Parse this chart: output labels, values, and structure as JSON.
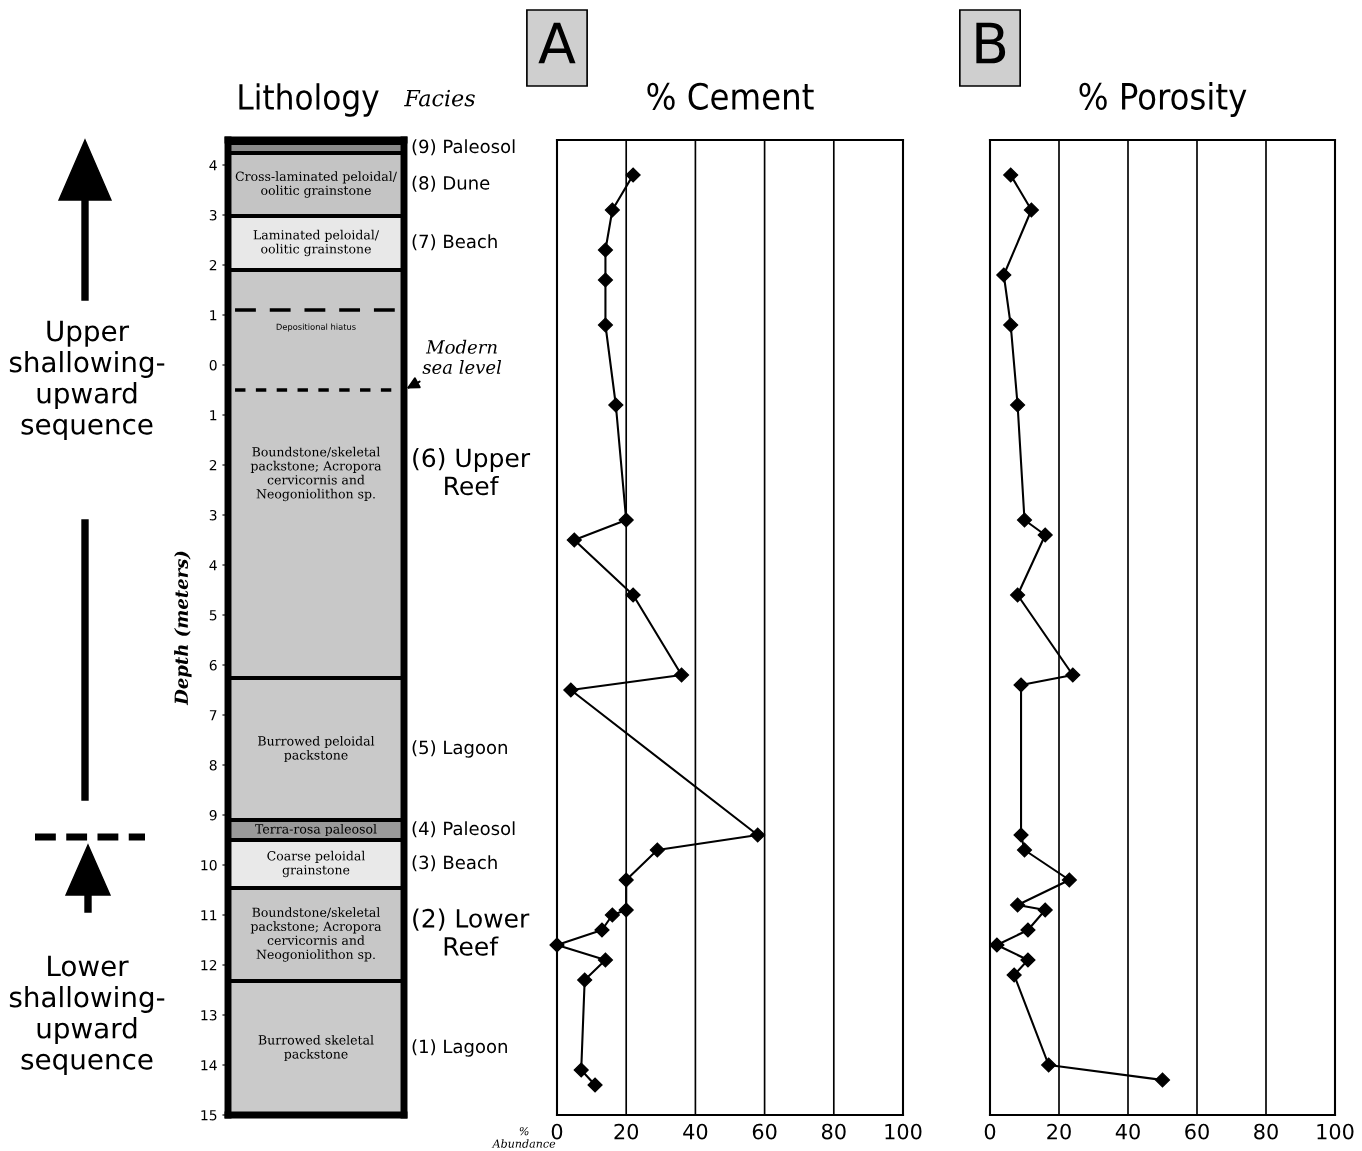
{
  "chart_data": [
    {
      "type": "line",
      "categories": [
        null
      ],
      "ylabel": "Depth (meters)",
      "ylim": [
        15,
        -4.5
      ],
      "yticks": [
        {
          "value": -4,
          "label": "4"
        },
        {
          "value": -3,
          "label": "3"
        },
        {
          "value": -2,
          "label": "2"
        },
        {
          "value": -1,
          "label": "1"
        },
        0,
        1,
        2,
        3,
        4,
        5,
        6,
        7,
        8,
        9,
        10,
        11,
        12,
        13,
        14,
        15
      ],
      "tick_labels": "y",
      "bands": [
        {
          "axis": "y",
          "from": -4.44,
          "to": -4.24,
          "label": "(9) Paleosol",
          "color": "#8c8c8c"
        },
        {
          "axis": "y",
          "from": -4.24,
          "to": -2.98,
          "label": "(8) Dune",
          "color": "#c4c4c4"
        },
        {
          "axis": "y",
          "from": -2.98,
          "to": -1.9,
          "label": "(7) Beach",
          "color": "#e8e8e8"
        },
        {
          "axis": "y",
          "from": -1.9,
          "to": 6.26,
          "label": "(6) Upper\nReef",
          "color": "#c8c8c8"
        },
        {
          "axis": "y",
          "from": 6.26,
          "to": 9.1,
          "label": "(5) Lagoon",
          "color": "#c9c9c9"
        },
        {
          "axis": "y",
          "from": 9.1,
          "to": 9.5,
          "label": "(4) Paleosol",
          "color": "#9a9a9a"
        },
        {
          "axis": "y",
          "from": 9.5,
          "to": 10.46,
          "label": "(3) Beach",
          "color": "#e9e9e9"
        },
        {
          "axis": "y",
          "from": 10.46,
          "to": 12.32,
          "label": "(2) Lower\nReef",
          "color": "#c7c7c7"
        },
        {
          "axis": "y",
          "from": 12.32,
          "to": 15,
          "label": "(1) Lagoon",
          "color": "#cacaca"
        }
      ],
      "ref_lines": [
        {
          "axis": "y",
          "value": -1.1,
          "label": "Depositional hiatus",
          "line_style": "dashed",
          "color": "#000000"
        },
        {
          "axis": "y",
          "value": 0.5,
          "label": "Modern\nsea level",
          "line_style": "dotted",
          "color": "#000000"
        }
      ],
      "annotations": [
        "Lithology",
        "Facies",
        "Upper\nshallowing-\nupward\nsequence",
        "Lower\nshallowing-\nupward\nsequence",
        "Cross-laminated peloidal/\noolitic grainstone",
        "Laminated peloidal/\noolitic grainstone",
        "Boundstone/skeletal\npackstone; Acropora\ncervicornis and\nNeogoniolithon sp.",
        "Burrowed peloidal\npackstone",
        "Terra-rosa paleosol",
        "Coarse peloidal\ngrainstone",
        "Boundstone/skeletal\npackstone; Acropora\ncervicornis and\nNeogoniolithon sp.",
        "Burrowed skeletal\npackstone"
      ]
    },
    {
      "type": "line",
      "title": "A",
      "subtitle": "% Cement",
      "xlabel": "%\nAbundance",
      "orientation": "horizontal",
      "xlim": [
        0,
        100
      ],
      "xticks": [
        0,
        20,
        40,
        60,
        80,
        100
      ],
      "ylim": [
        15,
        -4.5
      ],
      "tick_labels": "x",
      "grid": "x",
      "marker": "diamond",
      "line_style": "solid",
      "series": [
        {
          "color": "#000000",
          "x": [
            -3.8,
            -3.1,
            -2.3,
            -1.7,
            -0.8,
            0.8,
            3.1,
            3.5,
            4.6,
            6.2,
            6.5,
            9.4,
            9.7,
            10.3,
            10.9,
            11.0,
            11.3,
            11.6,
            11.9,
            12.3,
            14.1,
            14.4
          ],
          "values": [
            22,
            16,
            14,
            14,
            14,
            17,
            20,
            5,
            22,
            36,
            4,
            58,
            29,
            20,
            20,
            16,
            13,
            0,
            14,
            8,
            7,
            11
          ]
        }
      ]
    },
    {
      "type": "line",
      "title": "B",
      "subtitle": "% Porosity",
      "orientation": "horizontal",
      "xlim": [
        0,
        100
      ],
      "xticks": [
        0,
        20,
        40,
        60,
        80,
        100
      ],
      "ylim": [
        15,
        -4.5
      ],
      "tick_labels": "x",
      "grid": "x",
      "marker": "diamond",
      "line_style": "solid",
      "series": [
        {
          "color": "#000000",
          "x": [
            -3.8,
            -3.1,
            -1.8,
            -0.8,
            0.8,
            3.1,
            3.4,
            4.6,
            6.2,
            6.4,
            9.4,
            9.7,
            10.3,
            10.8,
            10.9,
            11.3,
            11.6,
            11.9,
            12.2,
            14.0,
            14.3
          ],
          "values": [
            6,
            12,
            4,
            6,
            8,
            10,
            16,
            8,
            24,
            9,
            9,
            10,
            23,
            8,
            16,
            11,
            2,
            11,
            7,
            17,
            50
          ]
        }
      ]
    }
  ]
}
